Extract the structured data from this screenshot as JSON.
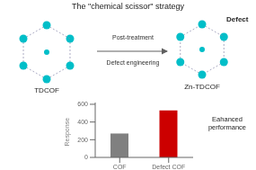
{
  "chart_data": {
    "type": "bar",
    "title": "The \"chemical scissor\" strategy",
    "categories": [
      "COF",
      "Defect COF"
    ],
    "values": [
      270,
      530
    ],
    "colors": [
      "#808080",
      "#cc0000"
    ],
    "ylabel": "Response",
    "ylim": [
      0,
      620
    ],
    "yticks": [
      0,
      200,
      400,
      600
    ],
    "annotations": [
      "Eahanced\nperformance",
      "TDCOF",
      "Zn-TDCOF",
      "Defect",
      "Post-treatment",
      "Defect engineering"
    ]
  }
}
